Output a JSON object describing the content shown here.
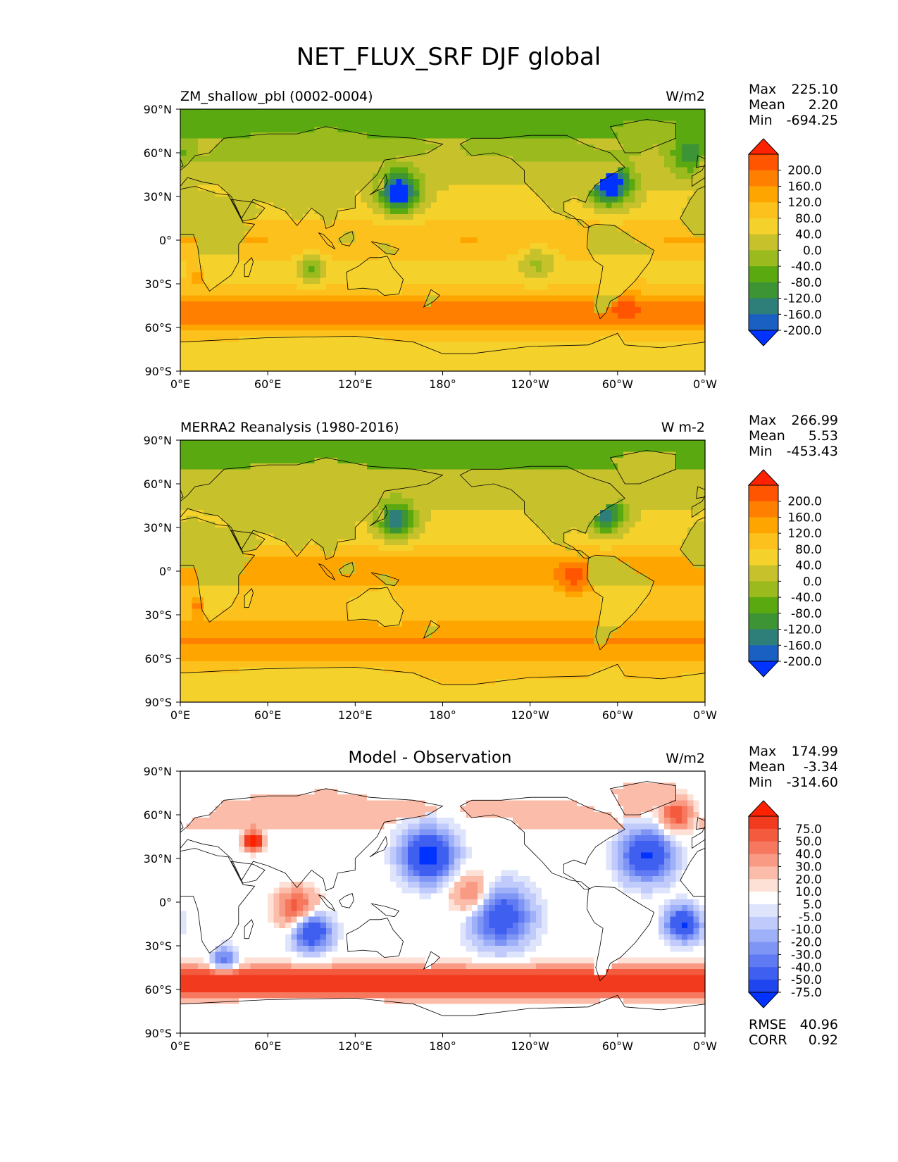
{
  "title": "NET_FLUX_SRF DJF global",
  "lon_ticks": [
    "0°E",
    "60°E",
    "120°E",
    "180°",
    "120°W",
    "60°W",
    "0°W"
  ],
  "lat_ticks": [
    "90°N",
    "60°N",
    "30°N",
    "0°",
    "30°S",
    "60°S",
    "90°S"
  ],
  "panels": [
    {
      "title_left": "ZM_shallow_pbl (0002-0004)",
      "title_center": "",
      "units": "W/m2",
      "stats": [
        {
          "label": "Max",
          "value": "225.10"
        },
        {
          "label": "Mean",
          "value": "2.20"
        },
        {
          "label": "Min",
          "value": "-694.25"
        }
      ],
      "colorbar": {
        "labels": [
          "200.0",
          "160.0",
          "120.0",
          "80.0",
          "40.0",
          "0.0",
          "-40.0",
          "-80.0",
          "-120.0",
          "-160.0",
          "-200.0"
        ],
        "colors": [
          "#ff2200",
          "#ff5500",
          "#ff7f00",
          "#ffa500",
          "#fcc11c",
          "#f5d12c",
          "#c7c12c",
          "#9bba1e",
          "#5aa910",
          "#3d9434",
          "#2e7f7a",
          "#1a5fc2",
          "#0033ff"
        ]
      },
      "field": "model",
      "extra_stats": []
    },
    {
      "title_left": "MERRA2 Reanalysis (1980-2016)",
      "title_center": "",
      "units": "W m-2",
      "stats": [
        {
          "label": "Max",
          "value": "266.99"
        },
        {
          "label": "Mean",
          "value": "5.53"
        },
        {
          "label": "Min",
          "value": "-453.43"
        }
      ],
      "colorbar": {
        "labels": [
          "200.0",
          "160.0",
          "120.0",
          "80.0",
          "40.0",
          "0.0",
          "-40.0",
          "-80.0",
          "-120.0",
          "-160.0",
          "-200.0"
        ],
        "colors": [
          "#ff2200",
          "#ff5500",
          "#ff7f00",
          "#ffa500",
          "#fcc11c",
          "#f5d12c",
          "#c7c12c",
          "#9bba1e",
          "#5aa910",
          "#3d9434",
          "#2e7f7a",
          "#1a5fc2",
          "#0033ff"
        ]
      },
      "field": "obs",
      "extra_stats": []
    },
    {
      "title_left": "",
      "title_center": "Model - Observation",
      "units": "W/m2",
      "stats": [
        {
          "label": "Max",
          "value": "174.99"
        },
        {
          "label": "Mean",
          "value": "-3.34"
        },
        {
          "label": "Min",
          "value": "-314.60"
        }
      ],
      "colorbar": {
        "labels": [
          "75.0",
          "50.0",
          "40.0",
          "30.0",
          "20.0",
          "10.0",
          "5.0",
          "-5.0",
          "-10.0",
          "-20.0",
          "-30.0",
          "-40.0",
          "-50.0",
          "-75.0"
        ],
        "colors": [
          "#ff2200",
          "#f23a1e",
          "#f45a3d",
          "#f6785f",
          "#f99a85",
          "#fbbcaa",
          "#fde0d6",
          "#ffffff",
          "#dfe4fd",
          "#c0cafb",
          "#9eb0f8",
          "#7f95f5",
          "#5f7af2",
          "#3f5ff0",
          "#1f45ee",
          "#0033ff"
        ]
      },
      "field": "diff",
      "extra_stats": [
        {
          "label": "RMSE",
          "value": "40.96"
        },
        {
          "label": "CORR",
          "value": "0.92"
        }
      ]
    }
  ]
}
